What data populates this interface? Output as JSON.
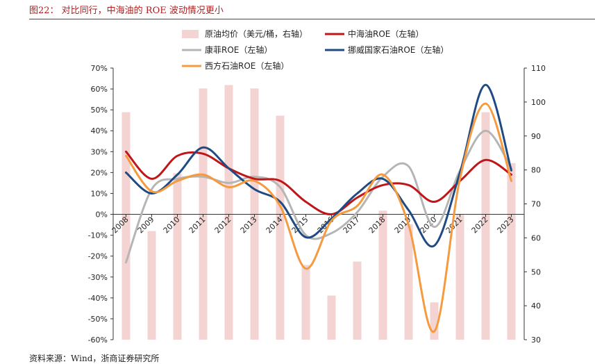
{
  "header": {
    "title": "图22：  对比同行，中海油的 ROE 波动情况更小"
  },
  "footer": {
    "source": "资料来源：Wind，浙商证券研究所"
  },
  "chart_data": {
    "type": "bar+line",
    "title": "对比同行，中海油的 ROE 波动情况更小",
    "categories": [
      "2008",
      "2009",
      "2010",
      "2011",
      "2012",
      "2013",
      "2014",
      "2015",
      "2016",
      "2017",
      "2018",
      "2019",
      "2020",
      "2021",
      "2022",
      "2023"
    ],
    "y_left": {
      "min": -60,
      "max": 70,
      "step": 10,
      "unit": "%"
    },
    "y_right": {
      "min": 30,
      "max": 110,
      "step": 10
    },
    "bars": {
      "name": "原油均价（美元/桶，右轴）",
      "axis": "right",
      "color": "#f4d3d3",
      "values": [
        97,
        62,
        79,
        104,
        105,
        104,
        96,
        52,
        43,
        53,
        68,
        64,
        41,
        67,
        97,
        82
      ]
    },
    "series": [
      {
        "name": "中海油ROE（左轴）",
        "axis": "left",
        "color": "#c0161a",
        "values": [
          30,
          17,
          28,
          29,
          22,
          17,
          16,
          6,
          0,
          8,
          14,
          14,
          6,
          16,
          26,
          19
        ]
      },
      {
        "name": "康菲ROE（左轴）",
        "axis": "left",
        "color": "#b5b5b5",
        "values": [
          -23,
          12,
          17,
          18,
          15,
          18,
          13,
          -10,
          -9,
          1,
          18,
          23,
          -6,
          21,
          40,
          22
        ]
      },
      {
        "name": "挪威国家石油ROE（左轴）",
        "axis": "left",
        "color": "#1f4a82",
        "values": [
          20,
          10,
          19,
          32,
          22,
          12,
          6,
          -11,
          -2,
          10,
          17,
          2,
          -15,
          20,
          62,
          21
        ]
      },
      {
        "name": "西方石油ROE（左轴）",
        "axis": "left",
        "color": "#f59a3e",
        "values": [
          28,
          11,
          16,
          19,
          13,
          16,
          4,
          -26,
          -3,
          4,
          19,
          -5,
          -56,
          17,
          53,
          16
        ]
      }
    ],
    "legend_placement": "top-center"
  }
}
